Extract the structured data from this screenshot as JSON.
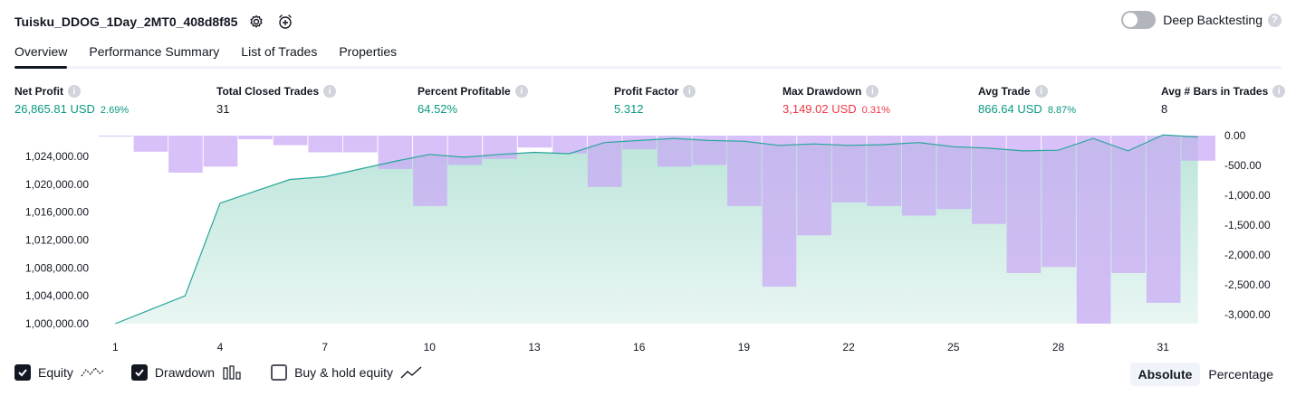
{
  "header": {
    "title": "Tuisku_DDOG_1Day_2MT0_408d8f85",
    "settings_icon": "gear-icon",
    "alert_icon": "add-alert-icon"
  },
  "deep_backtesting": {
    "label": "Deep Backtesting",
    "enabled": false,
    "help": "?"
  },
  "tabs": [
    {
      "label": "Overview",
      "active": true
    },
    {
      "label": "Performance Summary",
      "active": false
    },
    {
      "label": "List of Trades",
      "active": false
    },
    {
      "label": "Properties",
      "active": false
    }
  ],
  "metrics": [
    {
      "label": "Net Profit",
      "value": "26,865.81 USD",
      "sub": "2.69%",
      "color": "green"
    },
    {
      "label": "Total Closed Trades",
      "value": "31",
      "sub": "",
      "color": "dark"
    },
    {
      "label": "Percent Profitable",
      "value": "64.52%",
      "sub": "",
      "color": "green"
    },
    {
      "label": "Profit Factor",
      "value": "5.312",
      "sub": "",
      "color": "green"
    },
    {
      "label": "Max Drawdown",
      "value": "3,149.02 USD",
      "sub": "0.31%",
      "color": "red"
    },
    {
      "label": "Avg Trade",
      "value": "866.64 USD",
      "sub": "8.87%",
      "color": "green"
    },
    {
      "label": "Avg # Bars in Trades",
      "value": "8",
      "sub": "",
      "color": "dark"
    }
  ],
  "chart_data": {
    "type": "area",
    "title": "",
    "x": [
      1,
      2,
      3,
      4,
      5,
      6,
      7,
      8,
      9,
      10,
      11,
      12,
      13,
      14,
      15,
      16,
      17,
      18,
      19,
      20,
      21,
      22,
      23,
      24,
      25,
      26,
      27,
      28,
      29,
      30,
      31,
      32
    ],
    "x_ticks": [
      "1",
      "4",
      "7",
      "10",
      "13",
      "16",
      "19",
      "22",
      "25",
      "28",
      "31"
    ],
    "y_left_ticks": [
      "1,024,000.00",
      "1,020,000.00",
      "1,016,000.00",
      "1,012,000.00",
      "1,008,000.00",
      "1,004,000.00",
      "1,000,000.00"
    ],
    "y_right_ticks": [
      "0.00",
      "-500.00",
      "-1,000.00",
      "-1,500.00",
      "-2,000.00",
      "-2,500.00",
      "-3,000.00"
    ],
    "ylim_left": [
      1000000,
      1027000
    ],
    "ylim_right": [
      -3150,
      0
    ],
    "series": [
      {
        "name": "Equity",
        "color": "#26a69a",
        "values": [
          1000000,
          1002000,
          1004000,
          1017300,
          1019000,
          1020700,
          1021100,
          1022200,
          1023300,
          1024300,
          1023900,
          1024300,
          1024600,
          1024400,
          1026000,
          1026300,
          1026600,
          1026300,
          1026200,
          1025600,
          1025800,
          1025600,
          1025700,
          1026000,
          1025400,
          1025200,
          1024800,
          1024900,
          1026600,
          1024800,
          1027100,
          1026800
        ]
      },
      {
        "name": "Drawdown",
        "color": "#c9a7f5",
        "values": [
          -15,
          -270,
          -620,
          -520,
          -60,
          -160,
          -280,
          -280,
          -560,
          -1180,
          -490,
          -390,
          -200,
          -300,
          -860,
          -230,
          -520,
          -490,
          -1180,
          -2530,
          -1670,
          -1120,
          -1180,
          -1340,
          -1230,
          -1480,
          -2300,
          -2200,
          -3149,
          -2300,
          -2800,
          -420
        ]
      }
    ]
  },
  "legend": [
    {
      "label": "Equity",
      "checked": true,
      "icon": "equity-line-icon"
    },
    {
      "label": "Drawdown",
      "checked": true,
      "icon": "drawdown-bars-icon"
    },
    {
      "label": "Buy & hold equity",
      "checked": false,
      "icon": "buy-hold-line-icon"
    }
  ],
  "modes": [
    {
      "label": "Absolute",
      "active": true
    },
    {
      "label": "Percentage",
      "active": false
    }
  ]
}
